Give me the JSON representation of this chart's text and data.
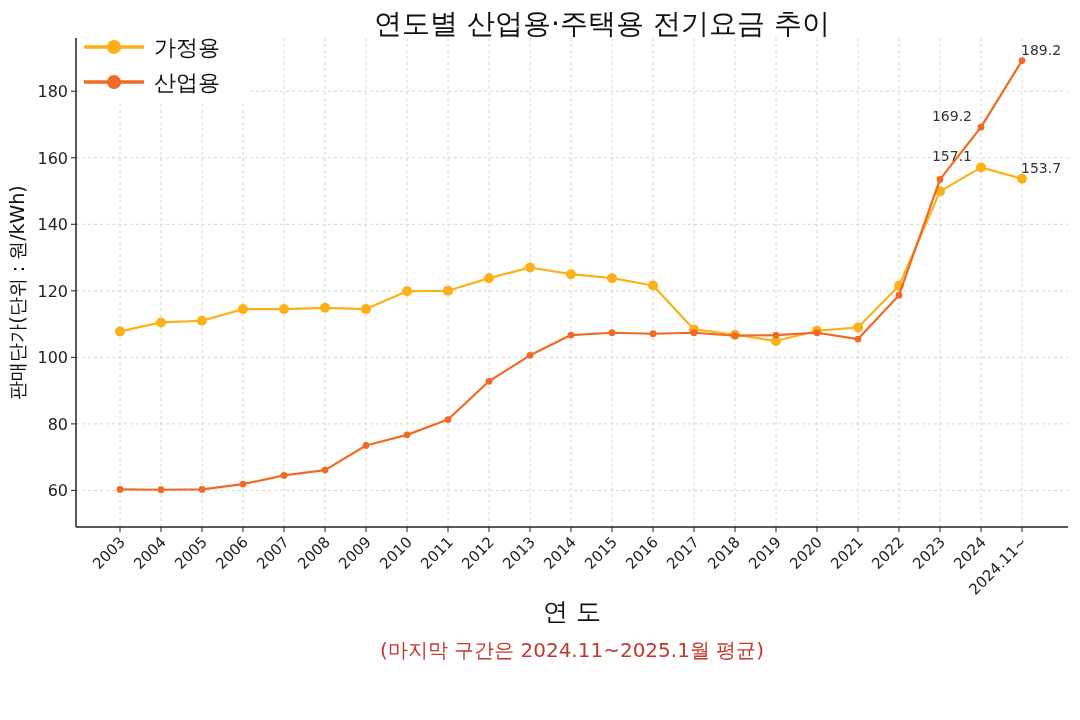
{
  "chart_data": {
    "type": "line",
    "title": "연도별 산업용·주택용 전기요금 추이",
    "xlabel": "연 도",
    "ylabel": "판매단가(단위 : 원/kWh)",
    "annotations": [
      "(마지막 구간은 2024.11~2025.1월 평균)"
    ],
    "categories": [
      "2003",
      "2004",
      "2005",
      "2006",
      "2007",
      "2008",
      "2009",
      "2010",
      "2011",
      "2012",
      "2013",
      "2014",
      "2015",
      "2016",
      "2017",
      "2018",
      "2019",
      "2020",
      "2021",
      "2022",
      "2023",
      "2024",
      "2024.11~"
    ],
    "series": [
      {
        "name": "가정용",
        "color": "#fbb117",
        "values": [
          107.8,
          110.5,
          111,
          114.5,
          114.5,
          114.9,
          114.5,
          119.9,
          120,
          123.8,
          127,
          125,
          123.8,
          121.6,
          108.4,
          106.8,
          104.9,
          108,
          109,
          121.5,
          149.9,
          157.1,
          153.7
        ],
        "value_labels": [
          null,
          null,
          null,
          null,
          null,
          null,
          null,
          null,
          null,
          null,
          null,
          null,
          null,
          null,
          null,
          null,
          null,
          null,
          null,
          null,
          null,
          "157.1",
          "153.7"
        ]
      },
      {
        "name": "산업용",
        "color": "#f06a25",
        "values": [
          60.3,
          60.2,
          60.3,
          61.9,
          64.5,
          66.1,
          73.5,
          76.7,
          81.3,
          92.8,
          100.6,
          106.7,
          107.4,
          107.1,
          107.4,
          106.5,
          106.7,
          107.4,
          105.5,
          118.7,
          153.5,
          169.2,
          189.2
        ],
        "value_labels": [
          null,
          null,
          null,
          null,
          null,
          null,
          null,
          null,
          null,
          null,
          null,
          null,
          null,
          null,
          null,
          null,
          null,
          null,
          null,
          null,
          null,
          "169.2",
          "189.2"
        ]
      }
    ],
    "ylim": [
      49,
      196
    ],
    "yticks": [
      60,
      80,
      100,
      120,
      140,
      160,
      180
    ],
    "grid": true,
    "legend": "top left",
    "marker": "circle",
    "line_style": "solid"
  }
}
